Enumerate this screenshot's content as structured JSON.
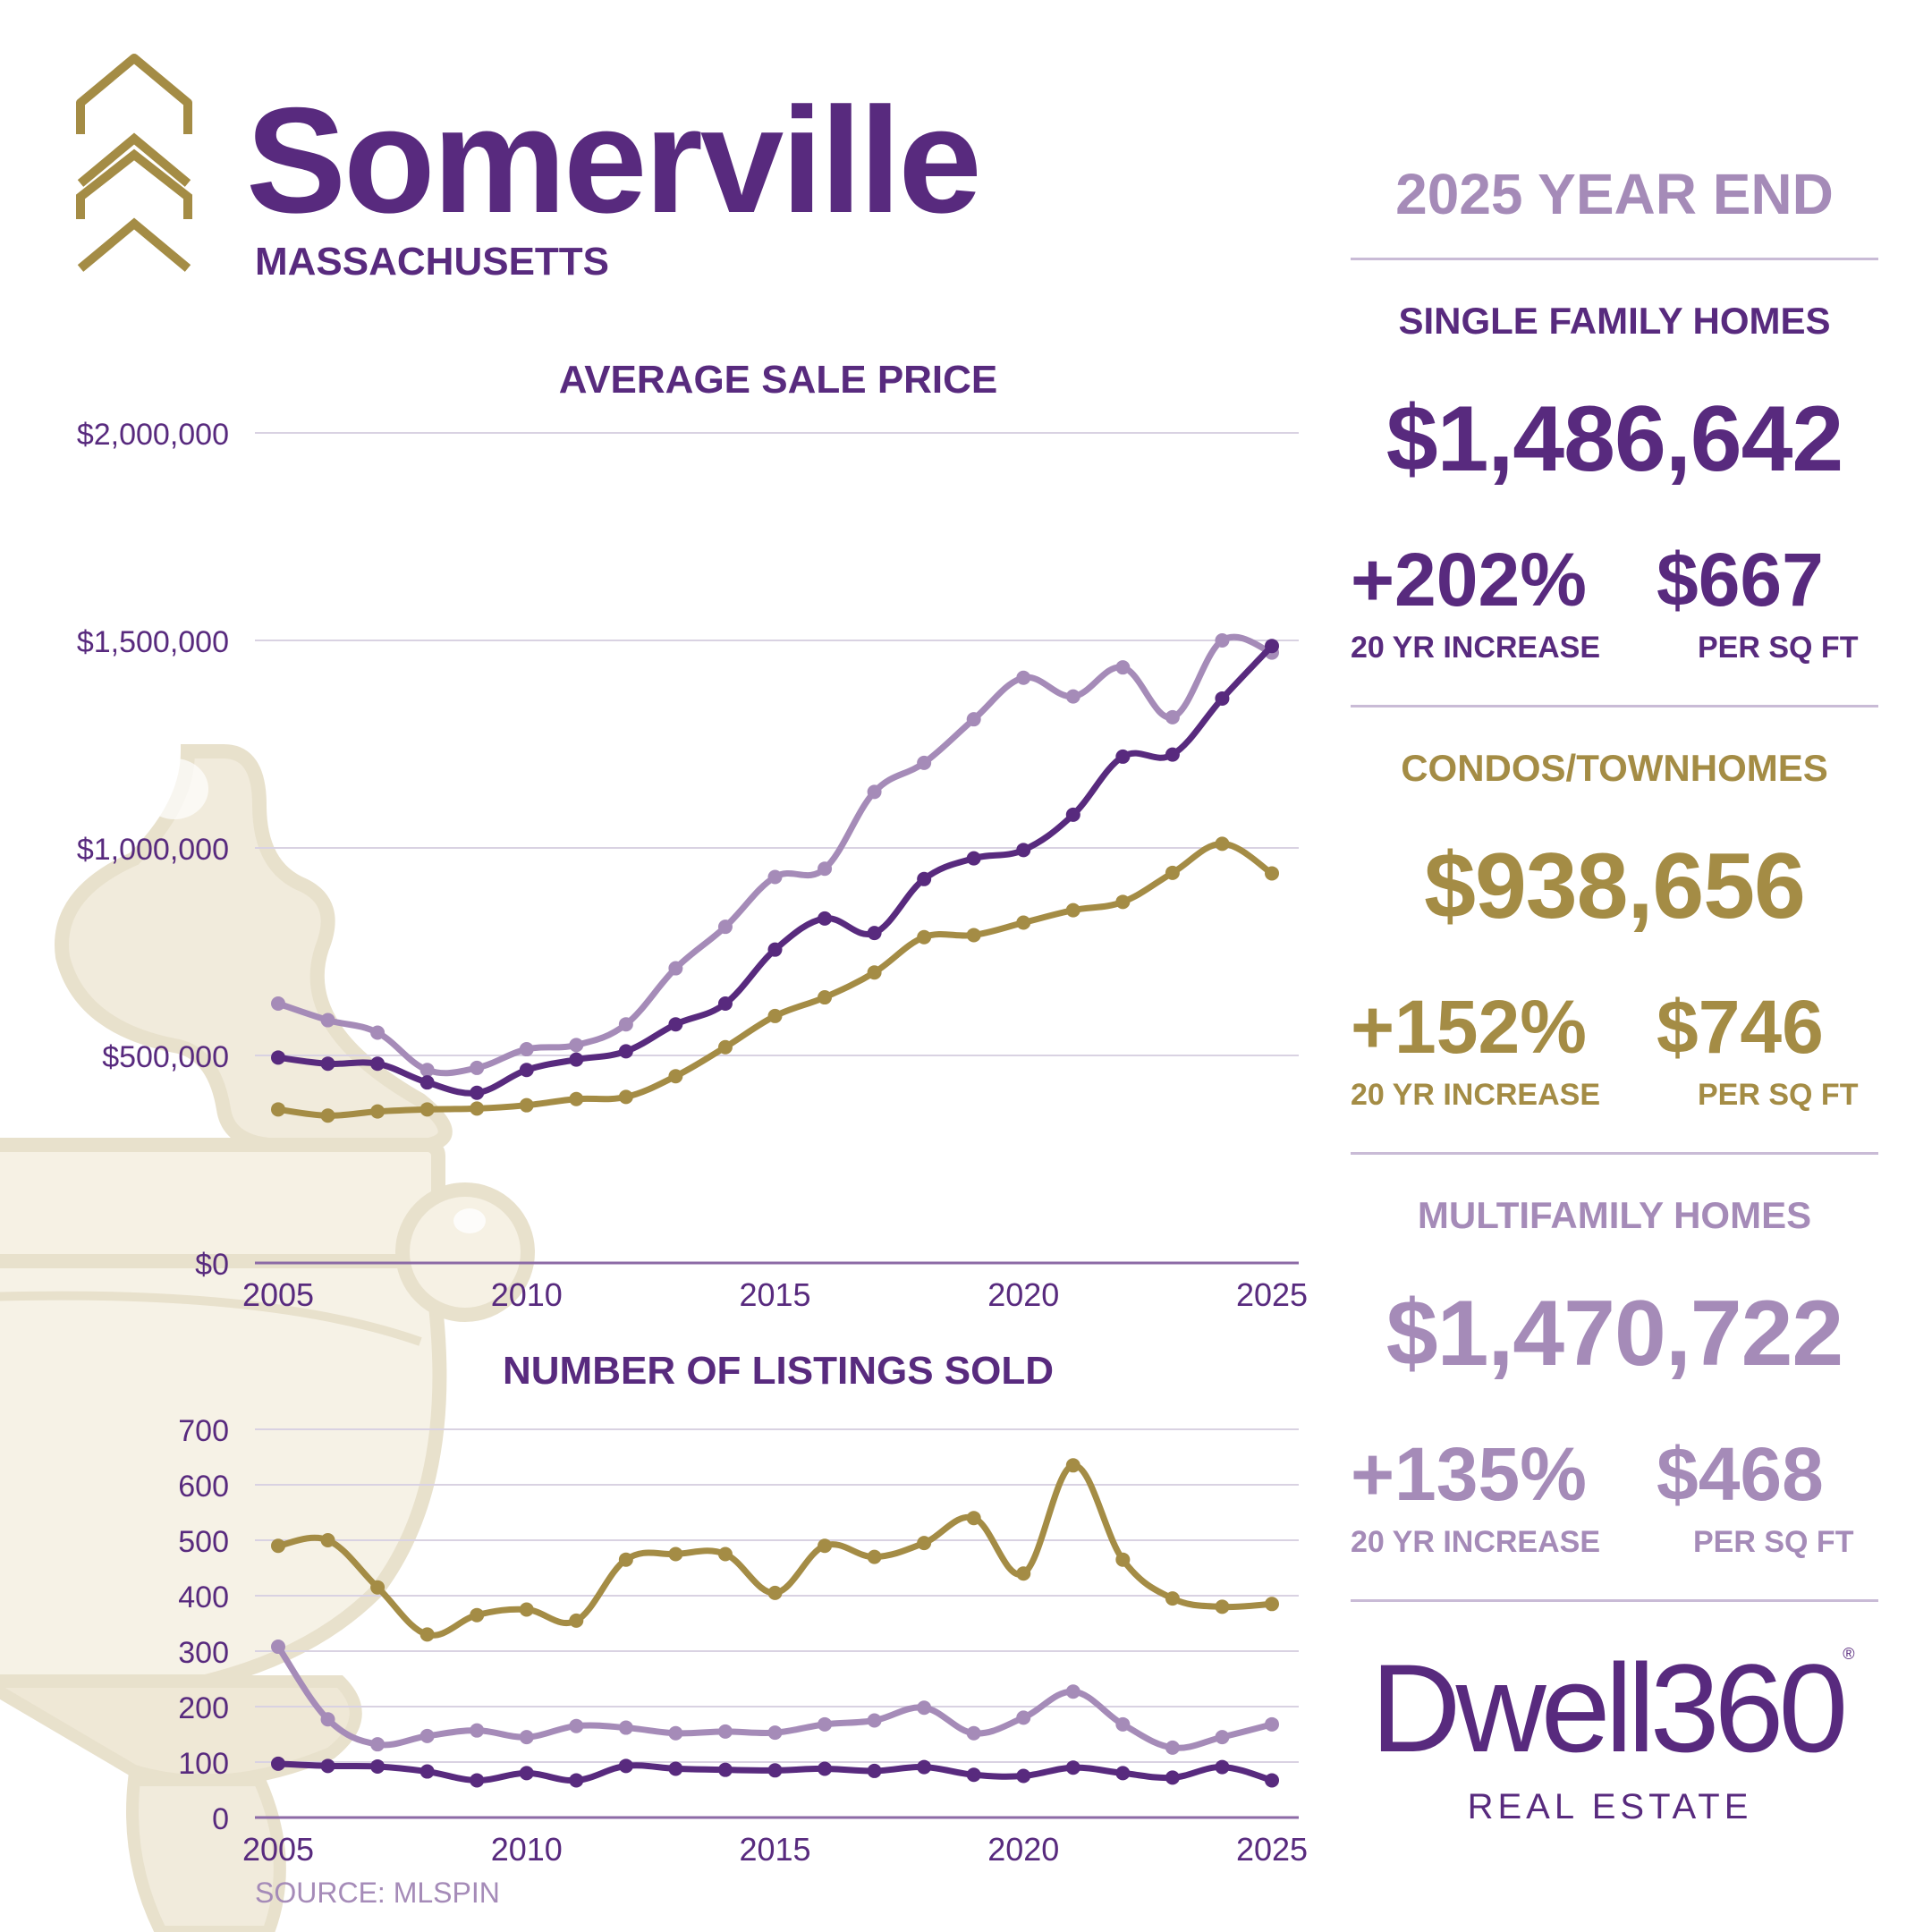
{
  "header": {
    "city": "Somerville",
    "state": "MASSACHUSETTS"
  },
  "colors": {
    "single_family": "#582a7e",
    "condos": "#a48c45",
    "multifamily": "#a58bb8",
    "grid": "#d9d2e2"
  },
  "summary": {
    "period": "2025 YEAR END",
    "single_family": {
      "label": "SINGLE FAMILY HOMES",
      "average_price": "$1,486,642",
      "increase": "+202%",
      "increase_label": "20 YR INCREASE",
      "per_sqft": "$667",
      "per_sqft_label": "PER SQ FT"
    },
    "condos": {
      "label": "CONDOS/TOWNHOMES",
      "average_price": "$938,656",
      "increase": "+152%",
      "increase_label": "20 YR INCREASE",
      "per_sqft": "$746",
      "per_sqft_label": "PER SQ FT"
    },
    "multifamily": {
      "label": "MULTIFAMILY HOMES",
      "average_price": "$1,470,722",
      "increase": "+135%",
      "increase_label": "20 YR INCREASE",
      "per_sqft": "$468",
      "per_sqft_label": "PER SQ FT"
    }
  },
  "brand": {
    "name": "Dwell360",
    "registered": "®",
    "subtitle": "REAL ESTATE"
  },
  "source": "SOURCE: MLSPIN",
  "chart_data": [
    {
      "type": "line",
      "title": "AVERAGE SALE PRICE",
      "x": [
        2005,
        2006,
        2007,
        2008,
        2009,
        2010,
        2011,
        2012,
        2013,
        2014,
        2015,
        2016,
        2017,
        2018,
        2019,
        2020,
        2021,
        2022,
        2023,
        2024,
        2025
      ],
      "x_ticks": [
        "2005",
        "2010",
        "2015",
        "2020",
        "2025"
      ],
      "x_tick_values": [
        2005,
        2010,
        2015,
        2020,
        2025
      ],
      "y_ticks": [
        "$0",
        "$500,000",
        "$1,000,000",
        "$1,500,000",
        "$2,000,000"
      ],
      "y_tick_values": [
        0,
        500000,
        1000000,
        1500000,
        2000000
      ],
      "ylim": [
        0,
        2000000
      ],
      "grid": true,
      "series": [
        {
          "key": "multifamily",
          "color": "#a58bb8",
          "values": [
            625000,
            585000,
            555000,
            465000,
            470000,
            515000,
            525000,
            575000,
            710000,
            810000,
            930000,
            950000,
            1135000,
            1205000,
            1310000,
            1410000,
            1365000,
            1435000,
            1315000,
            1500000,
            1470722
          ]
        },
        {
          "key": "single_family",
          "color": "#582a7e",
          "values": [
            495000,
            480000,
            480000,
            435000,
            410000,
            465000,
            490000,
            510000,
            575000,
            625000,
            755000,
            830000,
            795000,
            925000,
            975000,
            995000,
            1080000,
            1220000,
            1225000,
            1360000,
            1486642
          ]
        },
        {
          "key": "condos",
          "color": "#a48c45",
          "values": [
            370000,
            355000,
            365000,
            370000,
            372000,
            380000,
            395000,
            400000,
            450000,
            520000,
            595000,
            640000,
            700000,
            785000,
            790000,
            820000,
            850000,
            870000,
            940000,
            1010000,
            938656
          ]
        }
      ]
    },
    {
      "type": "line",
      "title": "NUMBER OF LISTINGS SOLD",
      "x": [
        2005,
        2006,
        2007,
        2008,
        2009,
        2010,
        2011,
        2012,
        2013,
        2014,
        2015,
        2016,
        2017,
        2018,
        2019,
        2020,
        2021,
        2022,
        2023,
        2024,
        2025
      ],
      "x_ticks": [
        "2005",
        "2010",
        "2015",
        "2020",
        "2025"
      ],
      "x_tick_values": [
        2005,
        2010,
        2015,
        2020,
        2025
      ],
      "y_ticks": [
        "0",
        "100",
        "200",
        "300",
        "400",
        "500",
        "600",
        "700"
      ],
      "y_tick_values": [
        0,
        100,
        200,
        300,
        400,
        500,
        600,
        700
      ],
      "ylim": [
        0,
        700
      ],
      "grid": true,
      "series": [
        {
          "key": "condos",
          "color": "#a48c45",
          "values": [
            490,
            500,
            415,
            330,
            365,
            375,
            355,
            465,
            475,
            475,
            405,
            490,
            470,
            495,
            540,
            440,
            635,
            465,
            395,
            380,
            385
          ]
        },
        {
          "key": "multifamily",
          "color": "#a58bb8",
          "values": [
            308,
            177,
            132,
            147,
            157,
            145,
            165,
            162,
            152,
            155,
            153,
            168,
            175,
            198,
            152,
            180,
            227,
            168,
            126,
            145,
            168
          ]
        },
        {
          "key": "single_family",
          "color": "#582a7e",
          "values": [
            97,
            93,
            92,
            83,
            67,
            80,
            67,
            93,
            88,
            86,
            85,
            88,
            84,
            91,
            77,
            75,
            90,
            80,
            72,
            91,
            67
          ]
        }
      ]
    }
  ]
}
